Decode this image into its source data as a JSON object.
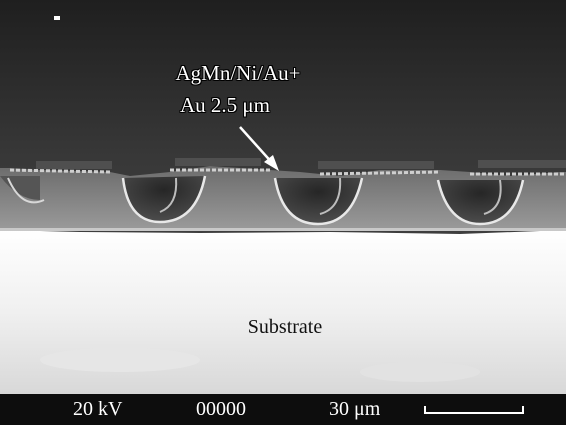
{
  "image": {
    "coating_label_line1": "AgMn/Ni/Au+",
    "coating_label_line2": "Au 2.5 μm",
    "substrate_label": "Substrate"
  },
  "info_bar": {
    "voltage": "20 kV",
    "frame_number": "00000",
    "scale": "30 μm"
  },
  "colors": {
    "background_dark": "#3a3a3a",
    "substrate": "#f2f2f2",
    "info_bar": "#0d0d0d"
  }
}
